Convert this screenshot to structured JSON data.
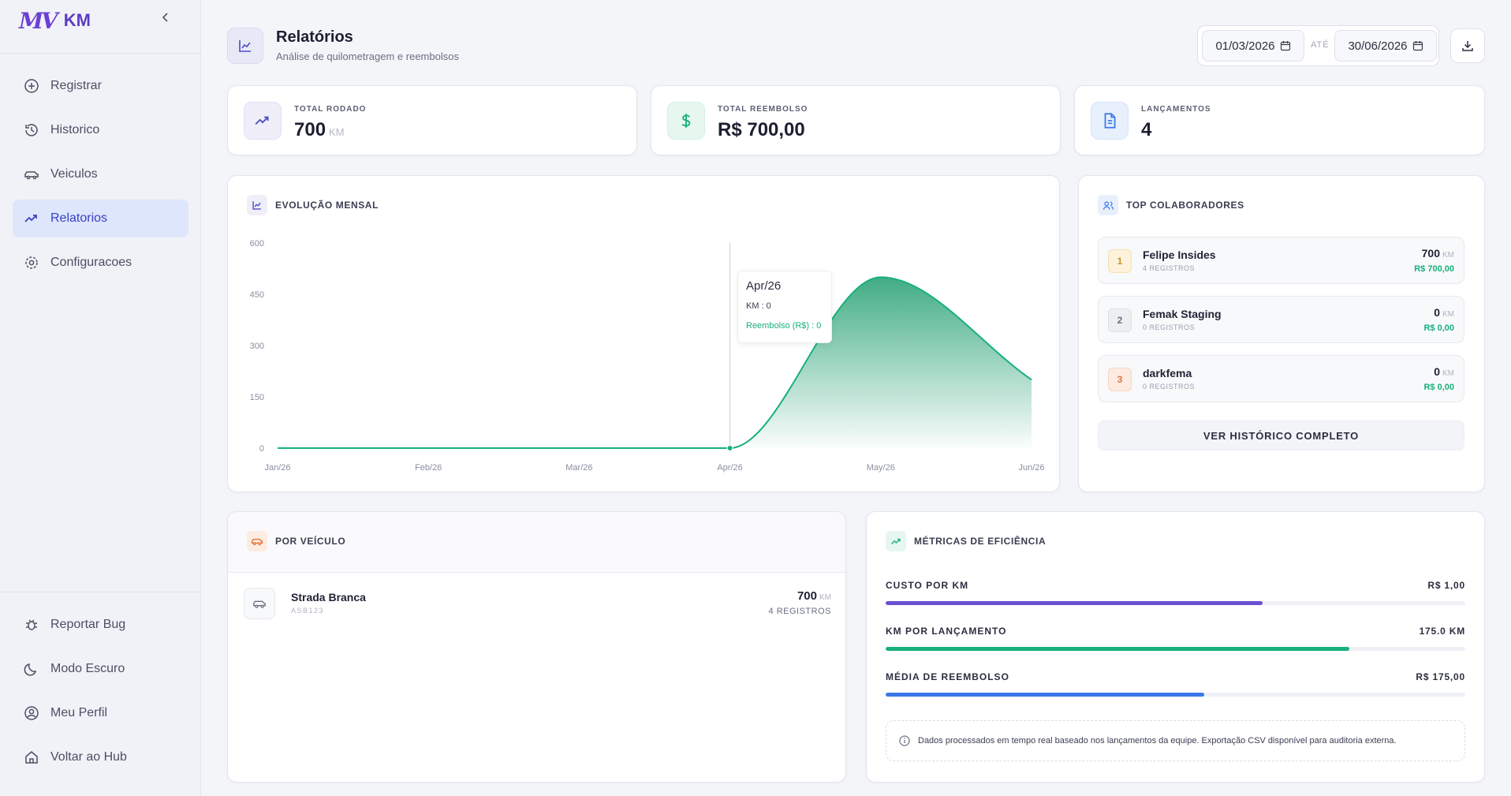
{
  "sidebar": {
    "brand_logo": "MV",
    "brand_name": "KM",
    "nav": [
      {
        "label": "Registrar",
        "icon": "plus-circle-icon"
      },
      {
        "label": "Historico",
        "icon": "history-icon"
      },
      {
        "label": "Veiculos",
        "icon": "car-icon"
      },
      {
        "label": "Relatorios",
        "icon": "trending-up-icon",
        "active": true
      },
      {
        "label": "Configuracoes",
        "icon": "gear-icon"
      }
    ],
    "bottom": [
      {
        "label": "Reportar Bug",
        "icon": "bug-icon"
      },
      {
        "label": "Modo Escuro",
        "icon": "moon-icon"
      },
      {
        "label": "Meu Perfil",
        "icon": "user-circle-icon"
      },
      {
        "label": "Voltar ao Hub",
        "icon": "home-icon"
      }
    ]
  },
  "header": {
    "title": "Relatórios",
    "subtitle": "Análise de quilometragem e reembolsos",
    "date_from": "01/03/2026",
    "date_sep": "ATÉ",
    "date_to": "30/06/2026"
  },
  "stats": {
    "total_km": {
      "label": "TOTAL RODADO",
      "value": "700",
      "unit": "KM"
    },
    "total_reimb": {
      "label": "TOTAL REEMBOLSO",
      "value": "R$ 700,00"
    },
    "launches": {
      "label": "LANÇAMENTOS",
      "value": "4"
    }
  },
  "evolution": {
    "title": "EVOLUÇÃO MENSAL",
    "tooltip": {
      "title": "Apr/26",
      "km": "KM : 0",
      "reimb": "Reembolso (R$) : 0"
    }
  },
  "chart_data": {
    "type": "area",
    "categories": [
      "Jan/26",
      "Feb/26",
      "Mar/26",
      "Apr/26",
      "May/26",
      "Jun/26"
    ],
    "series": [
      {
        "name": "KM",
        "values": [
          0,
          0,
          0,
          0,
          500,
          200
        ]
      },
      {
        "name": "Reembolso (R$)",
        "values": [
          0,
          0,
          0,
          0,
          500,
          200
        ]
      }
    ],
    "yticks": [
      0,
      150,
      300,
      450,
      600
    ],
    "ylim": [
      0,
      600
    ],
    "colors": {
      "line": "#17b07c",
      "fill": "#1f9e6e"
    }
  },
  "top_collab": {
    "title": "TOP COLABORADORES",
    "items": [
      {
        "rank": "1",
        "name": "Felipe Insides",
        "registros": "4 REGISTROS",
        "km": "700",
        "unit": "KM",
        "money": "R$ 700,00"
      },
      {
        "rank": "2",
        "name": "Femak Staging",
        "registros": "0 REGISTROS",
        "km": "0",
        "unit": "KM",
        "money": "R$ 0,00"
      },
      {
        "rank": "3",
        "name": "darkfema",
        "registros": "0 REGISTROS",
        "km": "0",
        "unit": "KM",
        "money": "R$ 0,00"
      }
    ],
    "button": "VER HISTÓRICO COMPLETO"
  },
  "vehicles": {
    "title": "POR VEÍCULO",
    "items": [
      {
        "name": "Strada Branca",
        "plate": "ASB123",
        "km": "700",
        "unit": "KM",
        "registros": "4 REGISTROS"
      }
    ]
  },
  "metrics": {
    "title": "MÉTRICAS DE EFICIÊNCIA",
    "items": [
      {
        "label": "CUSTO POR KM",
        "value": "R$ 1,00",
        "fill": 0.65,
        "color": "#6a4fd1"
      },
      {
        "label": "KM POR LANÇAMENTO",
        "value": "175.0 KM",
        "fill": 0.8,
        "color": "#17b07c"
      },
      {
        "label": "MÉDIA DE REEMBOLSO",
        "value": "R$ 175,00",
        "fill": 0.55,
        "color": "#3a78e8"
      }
    ],
    "info": "Dados processados em tempo real baseado nos lançamentos da equipe. Exportação CSV disponível para auditoria externa."
  }
}
